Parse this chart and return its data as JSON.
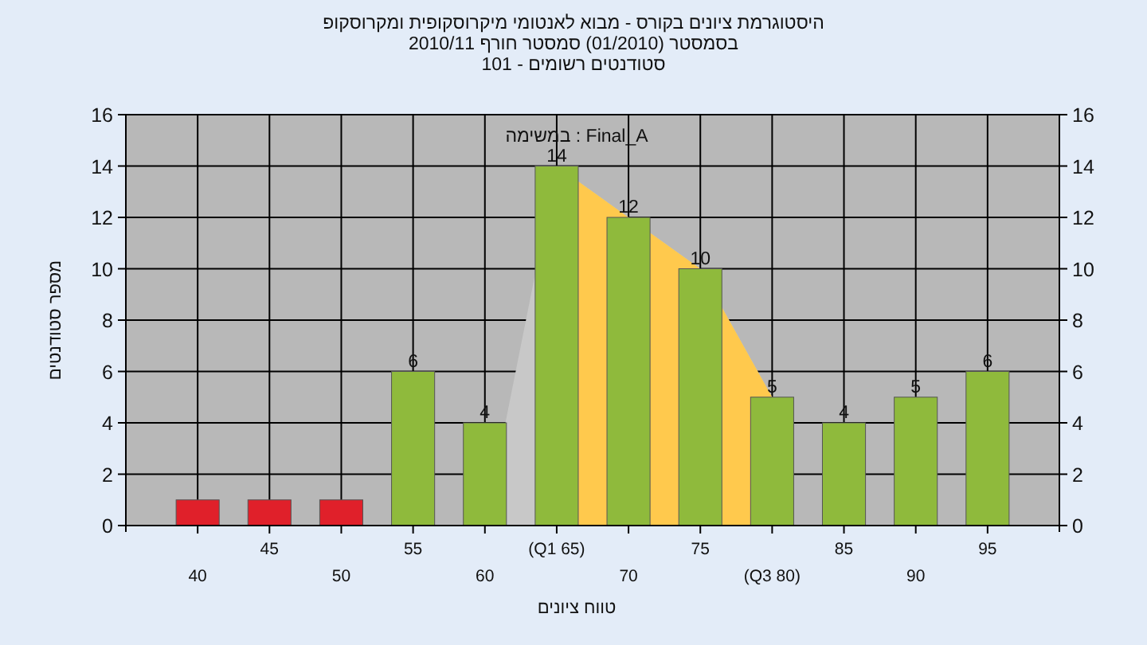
{
  "chart_data": {
    "type": "bar",
    "title": "היסטוגרמת ציונים בקורס - מבוא לאנטומי מיקרוסקופית ומקרוסקופ",
    "subtitle": "בסמסטר  (01/2010)  סמסטר חורף 2010/11",
    "annotations": [
      "סטודנטים רשומים - 101",
      "במשימה : Final_A"
    ],
    "xlabel": "טווח ציונים",
    "ylabel": "מספר סטודנטים",
    "categories": [
      "40",
      "45",
      "50",
      "55",
      "60",
      "(Q1 65)",
      "70",
      "75",
      "(Q3 80)",
      "85",
      "90",
      "95"
    ],
    "series": [
      {
        "type": "area",
        "color": "#c8c8c8",
        "values": [
          null,
          null,
          null,
          null,
          0,
          14,
          12,
          10,
          5,
          null,
          null,
          null
        ]
      },
      {
        "type": "area",
        "color": "#ffc94d",
        "values": [
          null,
          null,
          null,
          null,
          null,
          14,
          12,
          10,
          5,
          null,
          null,
          null
        ]
      },
      {
        "colors": [
          "#e0202a",
          "#e0202a",
          "#e0202a",
          "#8fba3c",
          "#8fba3c",
          "#8fba3c",
          "#8fba3c",
          "#8fba3c",
          "#8fba3c",
          "#8fba3c",
          "#8fba3c",
          "#8fba3c"
        ],
        "values": [
          1,
          1,
          1,
          6,
          4,
          14,
          12,
          10,
          5,
          4,
          5,
          6
        ],
        "value_labels": [
          null,
          null,
          null,
          "6",
          "4",
          "14",
          "12",
          "10",
          "5",
          "4",
          "5",
          "6"
        ]
      }
    ],
    "ylim": [
      0,
      16
    ],
    "yticks": [
      0,
      2,
      4,
      6,
      8,
      10,
      12,
      14,
      16
    ],
    "y2lim": [
      0,
      16
    ],
    "y2ticks": [
      0,
      2,
      4,
      6,
      8,
      10,
      12,
      14,
      16
    ],
    "grid": true
  }
}
